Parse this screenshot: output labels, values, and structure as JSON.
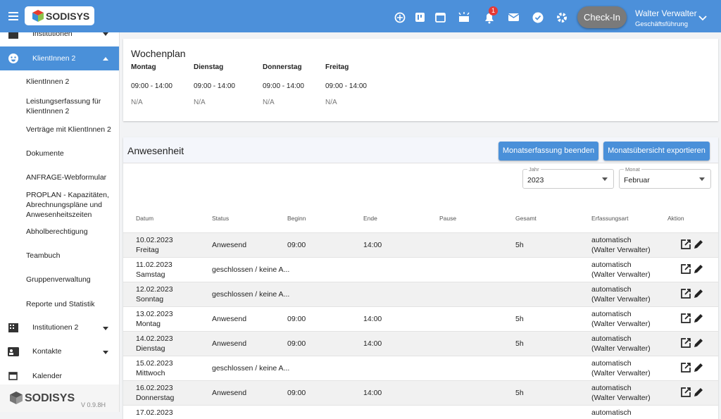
{
  "header": {
    "logo": "SODISYS",
    "badge": "1",
    "checkin": "Check-In",
    "user_name": "Walter Verwalter",
    "user_role": "Geschäftsführung"
  },
  "sidebar": {
    "top_item": "Institutionen",
    "active": "KlientInnen 2",
    "sub_items": [
      "KlientInnen 2",
      "Leistungserfassung für KlientInnen 2",
      "Verträge mit KlientInnen 2",
      "Dokumente",
      "ANFRAGE-Webformular",
      "PROPLAN - Kapazitäten, Abrechnungspläne und Anwesenheitszeiten",
      "Abholberechtigung",
      "Teambuch",
      "Gruppenverwaltung",
      "Reporte und Statistik"
    ],
    "groups": [
      "Institutionen 2",
      "Kontakte",
      "Kalender"
    ],
    "footer_brand": "SODISYS",
    "version": "V 0.9.8H"
  },
  "wochenplan": {
    "title": "Wochenplan",
    "days": [
      {
        "name": "Montag",
        "time": "09:00 - 14:00",
        "note": "N/A"
      },
      {
        "name": "Dienstag",
        "time": "09:00 - 14:00",
        "note": "N/A"
      },
      {
        "name": "Donnerstag",
        "time": "09:00 - 14:00",
        "note": "N/A"
      },
      {
        "name": "Freitag",
        "time": "09:00 - 14:00",
        "note": "N/A"
      }
    ]
  },
  "anwesenheit": {
    "title": "Anwesenheit",
    "buttons": [
      "Monatserfassung beenden",
      "Monatsübersicht exportieren"
    ],
    "filters": [
      {
        "label": "Jahr",
        "value": "2023"
      },
      {
        "label": "Monat",
        "value": "Februar"
      }
    ],
    "columns": [
      "Datum",
      "Status",
      "Beginn",
      "Ende",
      "Pause",
      "Gesamt",
      "Erfassungsart",
      "Aktion"
    ],
    "rows": [
      {
        "date": "10.02.2023",
        "weekday": "Freitag",
        "status": "Anwesend",
        "begin": "09:00",
        "end": "14:00",
        "total": "5h",
        "method": "automatisch",
        "by": "(Walter Verwalter)"
      },
      {
        "date": "11.02.2023",
        "weekday": "Samstag",
        "status": "geschlossen / keine A...",
        "method": "automatisch",
        "by": "(Walter Verwalter)"
      },
      {
        "date": "12.02.2023",
        "weekday": "Sonntag",
        "status": "geschlossen / keine A...",
        "method": "automatisch",
        "by": "(Walter Verwalter)"
      },
      {
        "date": "13.02.2023",
        "weekday": "Montag",
        "status": "Anwesend",
        "begin": "09:00",
        "end": "14:00",
        "total": "5h",
        "method": "automatisch",
        "by": "(Walter Verwalter)"
      },
      {
        "date": "14.02.2023",
        "weekday": "Dienstag",
        "status": "Anwesend",
        "begin": "09:00",
        "end": "14:00",
        "total": "5h",
        "method": "automatisch",
        "by": "(Walter Verwalter)"
      },
      {
        "date": "15.02.2023",
        "weekday": "Mittwoch",
        "status": "geschlossen / keine A...",
        "method": "automatisch",
        "by": "(Walter Verwalter)"
      },
      {
        "date": "16.02.2023",
        "weekday": "Donnerstag",
        "status": "Anwesend",
        "begin": "09:00",
        "end": "14:00",
        "total": "5h",
        "method": "automatisch",
        "by": "(Walter Verwalter)"
      },
      {
        "date": "17.02.2023",
        "method": "automatisch"
      }
    ]
  }
}
